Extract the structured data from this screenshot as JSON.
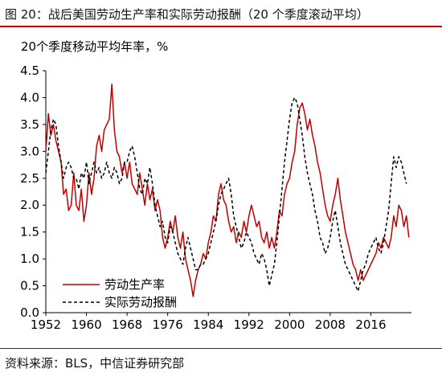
{
  "figure": {
    "title": "图 20：战后美国劳动生产率和实际劳动报酬（20 个季度滚动平均）",
    "source": "资料来源：BLS，中信证券研究部"
  },
  "colors": {
    "accent": "#c00000",
    "series_productivity": "#c00000",
    "series_compensation": "#000000"
  },
  "chart_data": {
    "type": "line",
    "title": "",
    "ylabel": "20个季度移动平均年率，%",
    "xlabel": "",
    "xlim": [
      1952,
      2024
    ],
    "ylim": [
      0,
      4.5
    ],
    "x_ticks": [
      1952,
      1960,
      1968,
      1976,
      1984,
      1992,
      2000,
      2008,
      2016
    ],
    "y_ticks": [
      "0.0",
      "0.5",
      "1.0",
      "1.5",
      "2.0",
      "2.5",
      "3.0",
      "3.5",
      "4.0",
      "4.5"
    ],
    "grid": false,
    "legend_position": "lower-left",
    "series": [
      {
        "name": "劳动生产率",
        "style": "solid",
        "color": "#c00000",
        "points": [
          [
            1952.0,
            3.0
          ],
          [
            1952.5,
            3.7
          ],
          [
            1953.0,
            3.3
          ],
          [
            1953.5,
            3.5
          ],
          [
            1954.0,
            3.2
          ],
          [
            1954.5,
            3.0
          ],
          [
            1955.0,
            2.8
          ],
          [
            1955.5,
            2.2
          ],
          [
            1956.0,
            2.3
          ],
          [
            1956.5,
            1.9
          ],
          [
            1957.0,
            2.0
          ],
          [
            1957.5,
            2.6
          ],
          [
            1958.0,
            2.0
          ],
          [
            1958.5,
            1.9
          ],
          [
            1959.0,
            2.3
          ],
          [
            1959.5,
            1.7
          ],
          [
            1960.0,
            2.0
          ],
          [
            1960.5,
            2.6
          ],
          [
            1961.0,
            2.2
          ],
          [
            1961.5,
            2.5
          ],
          [
            1962.0,
            3.1
          ],
          [
            1962.5,
            3.3
          ],
          [
            1963.0,
            3.0
          ],
          [
            1963.5,
            3.4
          ],
          [
            1964.0,
            3.5
          ],
          [
            1964.5,
            3.6
          ],
          [
            1965.0,
            4.25
          ],
          [
            1965.5,
            3.4
          ],
          [
            1966.0,
            3.0
          ],
          [
            1966.5,
            2.9
          ],
          [
            1967.0,
            2.6
          ],
          [
            1967.5,
            2.8
          ],
          [
            1968.0,
            2.5
          ],
          [
            1968.5,
            2.8
          ],
          [
            1969.0,
            2.4
          ],
          [
            1969.5,
            2.3
          ],
          [
            1970.0,
            2.2
          ],
          [
            1970.5,
            2.6
          ],
          [
            1971.0,
            2.3
          ],
          [
            1971.5,
            2.0
          ],
          [
            1972.0,
            2.4
          ],
          [
            1972.5,
            2.1
          ],
          [
            1973.0,
            2.3
          ],
          [
            1973.5,
            1.9
          ],
          [
            1974.0,
            2.1
          ],
          [
            1974.5,
            1.9
          ],
          [
            1975.0,
            1.4
          ],
          [
            1975.5,
            1.2
          ],
          [
            1976.0,
            1.4
          ],
          [
            1976.5,
            1.7
          ],
          [
            1977.0,
            1.5
          ],
          [
            1977.5,
            1.8
          ],
          [
            1978.0,
            1.4
          ],
          [
            1978.5,
            1.2
          ],
          [
            1979.0,
            1.5
          ],
          [
            1979.5,
            1.0
          ],
          [
            1980.0,
            0.8
          ],
          [
            1980.5,
            0.6
          ],
          [
            1981.0,
            0.3
          ],
          [
            1981.5,
            0.6
          ],
          [
            1982.0,
            0.8
          ],
          [
            1982.5,
            0.9
          ],
          [
            1983.0,
            1.1
          ],
          [
            1983.5,
            1.0
          ],
          [
            1984.0,
            1.3
          ],
          [
            1984.5,
            1.5
          ],
          [
            1985.0,
            1.8
          ],
          [
            1985.5,
            1.7
          ],
          [
            1986.0,
            2.2
          ],
          [
            1986.5,
            2.4
          ],
          [
            1987.0,
            2.1
          ],
          [
            1987.5,
            2.0
          ],
          [
            1988.0,
            1.7
          ],
          [
            1988.5,
            1.5
          ],
          [
            1989.0,
            1.6
          ],
          [
            1989.5,
            1.3
          ],
          [
            1990.0,
            1.5
          ],
          [
            1990.5,
            1.4
          ],
          [
            1991.0,
            1.7
          ],
          [
            1991.5,
            1.5
          ],
          [
            1992.0,
            1.8
          ],
          [
            1992.5,
            2.0
          ],
          [
            1993.0,
            1.8
          ],
          [
            1993.5,
            1.6
          ],
          [
            1994.0,
            1.7
          ],
          [
            1994.5,
            1.4
          ],
          [
            1995.0,
            1.3
          ],
          [
            1995.5,
            1.5
          ],
          [
            1996.0,
            1.2
          ],
          [
            1996.5,
            1.4
          ],
          [
            1997.0,
            1.2
          ],
          [
            1997.5,
            1.5
          ],
          [
            1998.0,
            1.9
          ],
          [
            1998.5,
            1.8
          ],
          [
            1999.0,
            2.2
          ],
          [
            1999.5,
            2.4
          ],
          [
            2000.0,
            2.5
          ],
          [
            2000.5,
            2.8
          ],
          [
            2001.0,
            3.0
          ],
          [
            2001.5,
            3.5
          ],
          [
            2002.0,
            3.8
          ],
          [
            2002.5,
            3.9
          ],
          [
            2003.0,
            3.7
          ],
          [
            2003.5,
            3.4
          ],
          [
            2004.0,
            3.6
          ],
          [
            2004.5,
            3.3
          ],
          [
            2005.0,
            3.1
          ],
          [
            2005.5,
            2.8
          ],
          [
            2006.0,
            2.6
          ],
          [
            2006.5,
            2.3
          ],
          [
            2007.0,
            2.0
          ],
          [
            2007.5,
            1.8
          ],
          [
            2008.0,
            1.7
          ],
          [
            2008.5,
            2.0
          ],
          [
            2009.0,
            2.2
          ],
          [
            2009.5,
            2.5
          ],
          [
            2010.0,
            2.1
          ],
          [
            2010.5,
            1.8
          ],
          [
            2011.0,
            1.5
          ],
          [
            2011.5,
            1.3
          ],
          [
            2012.0,
            1.1
          ],
          [
            2012.5,
            0.9
          ],
          [
            2013.0,
            0.8
          ],
          [
            2013.5,
            0.6
          ],
          [
            2014.0,
            0.8
          ],
          [
            2014.5,
            0.6
          ],
          [
            2015.0,
            0.7
          ],
          [
            2015.5,
            0.8
          ],
          [
            2016.0,
            0.9
          ],
          [
            2016.5,
            1.0
          ],
          [
            2017.0,
            1.1
          ],
          [
            2017.5,
            1.3
          ],
          [
            2018.0,
            1.2
          ],
          [
            2018.5,
            1.4
          ],
          [
            2019.0,
            1.3
          ],
          [
            2019.5,
            1.2
          ],
          [
            2020.0,
            1.4
          ],
          [
            2020.5,
            1.8
          ],
          [
            2021.0,
            1.6
          ],
          [
            2021.5,
            2.0
          ],
          [
            2022.0,
            1.9
          ],
          [
            2022.5,
            1.6
          ],
          [
            2023.0,
            1.8
          ],
          [
            2023.5,
            1.4
          ]
        ]
      },
      {
        "name": "实际劳动报酬",
        "style": "dashed",
        "color": "#000000",
        "points": [
          [
            1952.0,
            2.6
          ],
          [
            1952.5,
            3.0
          ],
          [
            1953.0,
            3.4
          ],
          [
            1953.5,
            3.6
          ],
          [
            1954.0,
            3.5
          ],
          [
            1954.5,
            3.1
          ],
          [
            1955.0,
            2.8
          ],
          [
            1955.5,
            2.5
          ],
          [
            1956.0,
            2.7
          ],
          [
            1956.5,
            2.8
          ],
          [
            1957.0,
            2.7
          ],
          [
            1957.5,
            2.5
          ],
          [
            1958.0,
            2.5
          ],
          [
            1958.5,
            2.3
          ],
          [
            1959.0,
            2.6
          ],
          [
            1959.5,
            2.5
          ],
          [
            1960.0,
            2.8
          ],
          [
            1960.5,
            2.4
          ],
          [
            1961.0,
            2.6
          ],
          [
            1961.5,
            2.8
          ],
          [
            1962.0,
            2.6
          ],
          [
            1962.5,
            2.7
          ],
          [
            1963.0,
            2.5
          ],
          [
            1963.5,
            2.6
          ],
          [
            1964.0,
            2.8
          ],
          [
            1964.5,
            2.6
          ],
          [
            1965.0,
            2.5
          ],
          [
            1965.5,
            2.7
          ],
          [
            1966.0,
            2.6
          ],
          [
            1966.5,
            2.4
          ],
          [
            1967.0,
            2.5
          ],
          [
            1967.5,
            2.8
          ],
          [
            1968.0,
            2.8
          ],
          [
            1968.5,
            3.0
          ],
          [
            1969.0,
            3.1
          ],
          [
            1969.5,
            2.9
          ],
          [
            1970.0,
            2.6
          ],
          [
            1970.5,
            2.3
          ],
          [
            1971.0,
            2.2
          ],
          [
            1971.5,
            2.5
          ],
          [
            1972.0,
            2.4
          ],
          [
            1972.5,
            2.7
          ],
          [
            1973.0,
            2.4
          ],
          [
            1973.5,
            2.0
          ],
          [
            1974.0,
            1.8
          ],
          [
            1974.5,
            1.6
          ],
          [
            1975.0,
            1.7
          ],
          [
            1975.5,
            1.4
          ],
          [
            1976.0,
            1.3
          ],
          [
            1976.5,
            1.6
          ],
          [
            1977.0,
            1.5
          ],
          [
            1977.5,
            1.3
          ],
          [
            1978.0,
            1.1
          ],
          [
            1978.5,
            1.0
          ],
          [
            1979.0,
            0.9
          ],
          [
            1979.5,
            1.2
          ],
          [
            1980.0,
            1.4
          ],
          [
            1980.5,
            1.2
          ],
          [
            1981.0,
            1.0
          ],
          [
            1981.5,
            0.8
          ],
          [
            1982.0,
            0.8
          ],
          [
            1982.5,
            0.9
          ],
          [
            1983.0,
            0.9
          ],
          [
            1983.5,
            1.0
          ],
          [
            1984.0,
            1.1
          ],
          [
            1984.5,
            1.3
          ],
          [
            1985.0,
            1.5
          ],
          [
            1985.5,
            1.7
          ],
          [
            1986.0,
            2.0
          ],
          [
            1986.5,
            2.2
          ],
          [
            1987.0,
            2.3
          ],
          [
            1987.5,
            2.4
          ],
          [
            1988.0,
            2.5
          ],
          [
            1988.5,
            2.2
          ],
          [
            1989.0,
            1.8
          ],
          [
            1989.5,
            1.6
          ],
          [
            1990.0,
            1.4
          ],
          [
            1990.5,
            1.2
          ],
          [
            1991.0,
            1.3
          ],
          [
            1991.5,
            1.5
          ],
          [
            1992.0,
            1.4
          ],
          [
            1992.5,
            1.3
          ],
          [
            1993.0,
            1.1
          ],
          [
            1993.5,
            1.0
          ],
          [
            1994.0,
            0.9
          ],
          [
            1994.5,
            1.1
          ],
          [
            1995.0,
            1.0
          ],
          [
            1995.5,
            0.8
          ],
          [
            1996.0,
            0.5
          ],
          [
            1996.5,
            0.7
          ],
          [
            1997.0,
            0.9
          ],
          [
            1997.5,
            1.3
          ],
          [
            1998.0,
            1.8
          ],
          [
            1998.5,
            2.3
          ],
          [
            1999.0,
            2.8
          ],
          [
            1999.5,
            3.2
          ],
          [
            2000.0,
            3.6
          ],
          [
            2000.5,
            3.9
          ],
          [
            2001.0,
            4.0
          ],
          [
            2001.5,
            3.9
          ],
          [
            2002.0,
            3.6
          ],
          [
            2002.5,
            3.3
          ],
          [
            2003.0,
            2.9
          ],
          [
            2003.5,
            2.6
          ],
          [
            2004.0,
            2.4
          ],
          [
            2004.5,
            2.2
          ],
          [
            2005.0,
            1.9
          ],
          [
            2005.5,
            1.7
          ],
          [
            2006.0,
            1.4
          ],
          [
            2006.5,
            1.3
          ],
          [
            2007.0,
            1.1
          ],
          [
            2007.5,
            1.2
          ],
          [
            2008.0,
            1.4
          ],
          [
            2008.5,
            1.7
          ],
          [
            2009.0,
            1.9
          ],
          [
            2009.5,
            1.6
          ],
          [
            2010.0,
            1.3
          ],
          [
            2010.5,
            1.1
          ],
          [
            2011.0,
            0.9
          ],
          [
            2011.5,
            0.8
          ],
          [
            2012.0,
            0.7
          ],
          [
            2012.5,
            0.6
          ],
          [
            2013.0,
            0.5
          ],
          [
            2013.5,
            0.4
          ],
          [
            2014.0,
            0.6
          ],
          [
            2014.5,
            0.8
          ],
          [
            2015.0,
            0.9
          ],
          [
            2015.5,
            1.1
          ],
          [
            2016.0,
            1.2
          ],
          [
            2016.5,
            1.3
          ],
          [
            2017.0,
            1.4
          ],
          [
            2017.5,
            1.2
          ],
          [
            2018.0,
            1.1
          ],
          [
            2018.5,
            1.3
          ],
          [
            2019.0,
            1.6
          ],
          [
            2019.5,
            1.9
          ],
          [
            2020.0,
            2.4
          ],
          [
            2020.5,
            2.9
          ],
          [
            2021.0,
            2.7
          ],
          [
            2021.5,
            2.9
          ],
          [
            2022.0,
            2.8
          ],
          [
            2022.5,
            2.6
          ],
          [
            2023.0,
            2.4
          ]
        ]
      }
    ]
  }
}
